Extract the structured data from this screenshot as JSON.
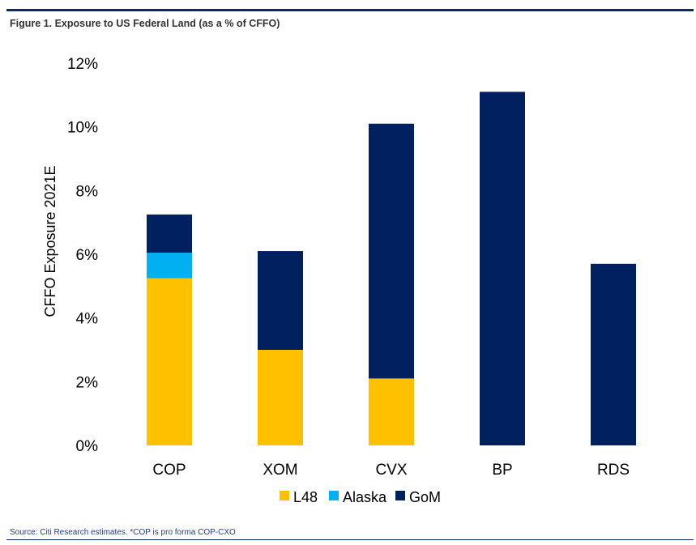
{
  "figure": {
    "title": "Figure 1. Exposure to US Federal Land (as a % of CFFO)",
    "source": "Source: Citi Research estimates. *COP is pro forma COP-CXO"
  },
  "chart_data": {
    "type": "bar",
    "stacked": true,
    "categories": [
      "COP",
      "XOM",
      "CVX",
      "BP",
      "RDS"
    ],
    "series": [
      {
        "name": "L48",
        "color": "#FFC000",
        "values": [
          5.25,
          3.0,
          2.1,
          0,
          0
        ]
      },
      {
        "name": "Alaska",
        "color": "#00B0F0",
        "values": [
          0.8,
          0,
          0,
          0,
          0
        ]
      },
      {
        "name": "GoM",
        "color": "#002060",
        "values": [
          1.2,
          3.1,
          8.0,
          11.1,
          5.7
        ]
      }
    ],
    "ylabel": "CFFO Exposure 2021E",
    "xlabel": "",
    "ylim": [
      0,
      12
    ],
    "yticks": [
      "0%",
      "2%",
      "4%",
      "6%",
      "8%",
      "10%",
      "12%"
    ],
    "grid": false,
    "legend_position": "bottom"
  }
}
